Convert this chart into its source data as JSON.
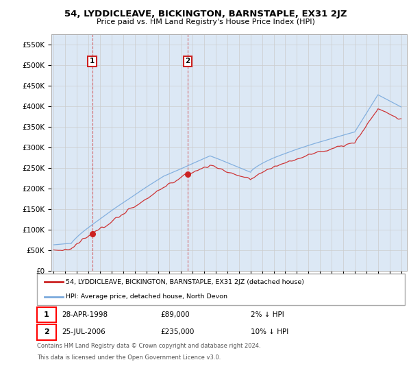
{
  "title": "54, LYDDICLEAVE, BICKINGTON, BARNSTAPLE, EX31 2JZ",
  "subtitle": "Price paid vs. HM Land Registry's House Price Index (HPI)",
  "ylim": [
    0,
    575000
  ],
  "yticks": [
    0,
    50000,
    100000,
    150000,
    200000,
    250000,
    300000,
    350000,
    400000,
    450000,
    500000,
    550000
  ],
  "ytick_labels": [
    "£0",
    "£50K",
    "£100K",
    "£150K",
    "£200K",
    "£250K",
    "£300K",
    "£350K",
    "£400K",
    "£450K",
    "£500K",
    "£550K"
  ],
  "xlim_start": 1994.8,
  "xlim_end": 2025.5,
  "hpi_color": "#7aaadd",
  "price_color": "#cc2222",
  "marker1_date": 1998.32,
  "marker1_price": 89000,
  "marker1_label": "1",
  "marker1_text": "28-APR-1998",
  "marker1_amount": "£89,000",
  "marker1_pct": "2% ↓ HPI",
  "marker2_date": 2006.56,
  "marker2_price": 235000,
  "marker2_label": "2",
  "marker2_text": "25-JUL-2006",
  "marker2_amount": "£235,000",
  "marker2_pct": "10% ↓ HPI",
  "legend_line1": "54, LYDDICLEAVE, BICKINGTON, BARNSTAPLE, EX31 2JZ (detached house)",
  "legend_line2": "HPI: Average price, detached house, North Devon",
  "footer1": "Contains HM Land Registry data © Crown copyright and database right 2024.",
  "footer2": "This data is licensed under the Open Government Licence v3.0.",
  "background_color": "#ffffff",
  "grid_color": "#cccccc",
  "plot_bg_color": "#dce8f5"
}
